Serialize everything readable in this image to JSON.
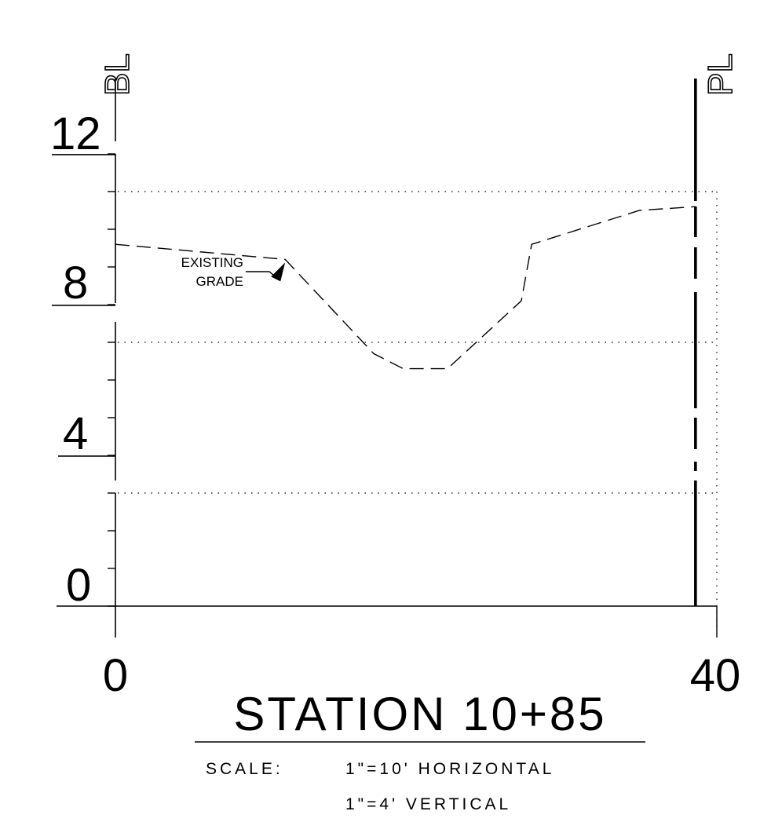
{
  "chart_data": {
    "type": "line",
    "title": "STATION 10+85",
    "scale_label": "SCALE:",
    "scale_horizontal": "1\"=10' HORIZONTAL",
    "scale_vertical": "1\"=4' VERTICAL",
    "xlim": [
      0,
      40
    ],
    "ylim": [
      0,
      13
    ],
    "x_ticks": [
      {
        "value": 0,
        "label": "0"
      },
      {
        "value": 40,
        "label": "40"
      }
    ],
    "y_ticks": [
      {
        "value": 0,
        "label": "0"
      },
      {
        "value": 4,
        "label": "4"
      },
      {
        "value": 8,
        "label": "8"
      },
      {
        "value": 12,
        "label": "12"
      }
    ],
    "y_minor_tick_step": 1,
    "left_centerline_label": "BL",
    "right_centerline_label": "PL",
    "right_line_x": 39.3,
    "series": [
      {
        "name": "EXISTING GRADE",
        "style": "dashed",
        "points": [
          [
            0,
            9.6
          ],
          [
            11.5,
            9.2
          ],
          [
            17.5,
            6.7
          ],
          [
            19.5,
            6.3
          ],
          [
            22.5,
            6.3
          ],
          [
            27.5,
            8.1
          ],
          [
            28.2,
            9.6
          ],
          [
            35.5,
            10.5
          ],
          [
            39.3,
            10.6
          ]
        ]
      }
    ],
    "annotation": {
      "text_line1": "EXISTING",
      "text_line2": "GRADE",
      "points_to": [
        11.5,
        9.2
      ]
    },
    "grid": "dotted horizontal at y = 3, 7, 11"
  }
}
